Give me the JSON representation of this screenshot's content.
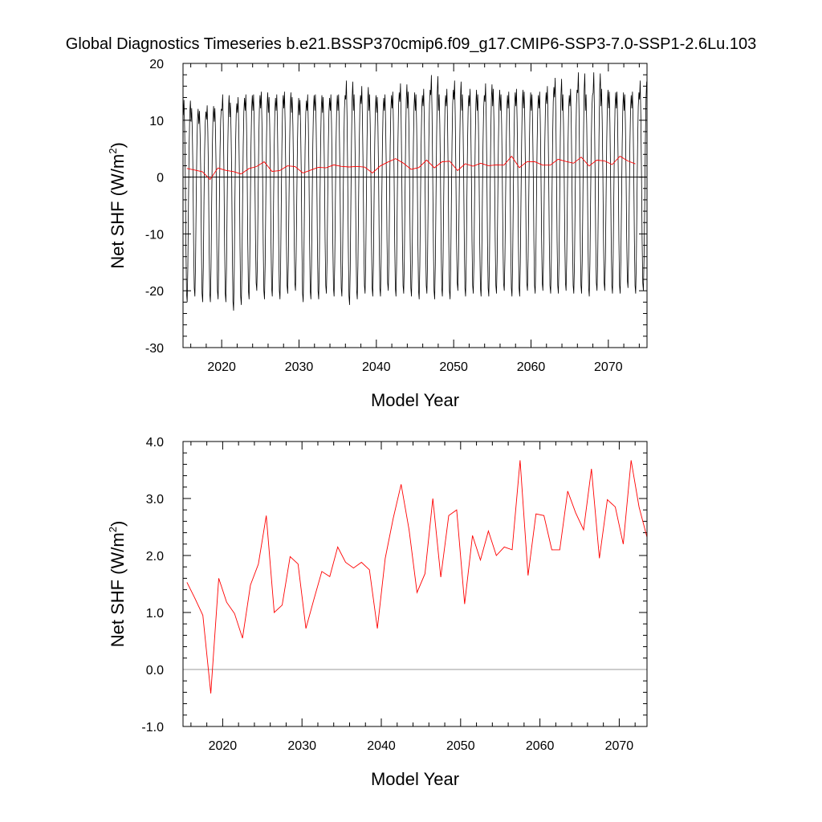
{
  "title": "Global Diagnostics Timeseries b.e21.BSSP370cmip6.f09_g17.CMIP6-SSP3-7.0-SSP1-2.6Lu.103",
  "chart_data": [
    {
      "type": "line",
      "xlabel": "Model Year",
      "ylabel": "Net SHF (W/m",
      "ylabel_sup": "2",
      "ylabel_close": ")",
      "xlim": [
        2015,
        2075
      ],
      "ylim": [
        -30,
        20
      ],
      "xticks": [
        2020,
        2030,
        2040,
        2050,
        2060,
        2070
      ],
      "yticks": [
        -30,
        -20,
        -10,
        0,
        10,
        20
      ],
      "ytick_labels": [
        "-30",
        "-20",
        "-10",
        "0",
        "10",
        "20"
      ],
      "zero_line": true,
      "colors": {
        "monthly": "#000000",
        "annual": "#ff0000"
      },
      "series": [
        {
          "role": "monthly",
          "x_start": 2015.04,
          "x_step": 0.08333,
          "cycle_max": [
            14.0,
            12.5,
            12.0,
            13.0,
            12.5,
            15.0,
            13.5,
            14.5,
            15.0,
            15.0,
            15.5,
            14.5,
            15.0,
            15.5,
            14.5,
            14.0,
            15.0,
            15.0,
            14.5,
            15.0,
            15.0,
            17.5,
            15.0,
            16.5,
            15.0,
            14.5,
            15.0,
            15.5,
            17.0,
            15.5,
            15.0,
            16.0,
            18.5,
            15.0,
            16.0,
            17.5,
            15.0,
            16.0,
            15.0,
            17.0,
            16.0,
            15.0,
            15.5,
            16.0,
            15.5,
            15.0,
            15.5,
            16.5,
            18.0,
            15.0,
            16.0,
            19.0,
            15.0,
            19.0,
            16.0,
            15.5,
            15.5,
            15.0,
            15.5,
            17.5
          ],
          "cycle_min": [
            -22.0,
            -21.0,
            -22.0,
            -22.0,
            -21.5,
            -22.0,
            -23.5,
            -22.5,
            -21.5,
            -20.0,
            -21.5,
            -21.0,
            -21.5,
            -20.5,
            -20.0,
            -22.0,
            -21.5,
            -21.5,
            -20.5,
            -21.0,
            -21.0,
            -22.5,
            -21.5,
            -20.5,
            -21.0,
            -21.0,
            -20.0,
            -21.0,
            -20.5,
            -21.0,
            -21.5,
            -20.5,
            -21.5,
            -21.0,
            -21.5,
            -20.0,
            -21.0,
            -20.5,
            -21.0,
            -21.0,
            -20.5,
            -20.0,
            -21.0,
            -21.0,
            -20.0,
            -20.5,
            -20.0,
            -20.5,
            -20.5,
            -20.0,
            -20.5,
            -20.5,
            -21.0,
            -20.0,
            -20.0,
            -20.5,
            -20.5,
            -19.5,
            -20.5,
            -20.0
          ]
        },
        {
          "role": "annual",
          "name": "",
          "x": [
            2015.5,
            2016.5,
            2017.5,
            2018.5,
            2019.5,
            2020.5,
            2021.5,
            2022.5,
            2023.5,
            2024.5,
            2025.5,
            2026.5,
            2027.5,
            2028.5,
            2029.5,
            2030.5,
            2031.5,
            2032.5,
            2033.5,
            2034.5,
            2035.5,
            2036.5,
            2037.5,
            2038.5,
            2039.5,
            2040.5,
            2041.5,
            2042.5,
            2043.5,
            2044.5,
            2045.5,
            2046.5,
            2047.5,
            2048.5,
            2049.5,
            2050.5,
            2051.5,
            2052.5,
            2053.5,
            2054.5,
            2055.5,
            2056.5,
            2057.5,
            2058.5,
            2059.5,
            2060.5,
            2061.5,
            2062.5,
            2063.5,
            2064.5,
            2065.5,
            2066.5,
            2067.5,
            2068.5,
            2069.5,
            2070.5,
            2071.5,
            2072.5,
            2073.5
          ],
          "values": [
            1.53,
            1.25,
            0.95,
            -0.42,
            1.6,
            1.18,
            0.98,
            0.55,
            1.48,
            1.85,
            2.7,
            1.0,
            1.13,
            1.98,
            1.85,
            0.72,
            1.23,
            1.72,
            1.63,
            2.15,
            1.88,
            1.78,
            1.88,
            1.75,
            0.72,
            1.95,
            2.65,
            3.25,
            2.45,
            1.35,
            1.68,
            3.0,
            1.62,
            2.7,
            2.8,
            1.15,
            2.35,
            1.92,
            2.43,
            2.0,
            2.15,
            2.1,
            3.67,
            1.65,
            2.73,
            2.7,
            2.1,
            2.1,
            3.13,
            2.75,
            2.45,
            3.52,
            1.95,
            2.98,
            2.85,
            2.2,
            3.67,
            2.85,
            2.32
          ]
        }
      ]
    },
    {
      "type": "line",
      "xlabel": "Model Year",
      "ylabel": "Net SHF (W/m",
      "ylabel_sup": "2",
      "ylabel_close": ")",
      "xlim": [
        2015,
        2073.5
      ],
      "ylim": [
        -1.0,
        4.0
      ],
      "xticks": [
        2020,
        2030,
        2040,
        2050,
        2060,
        2070
      ],
      "yticks": [
        -1.0,
        0.0,
        1.0,
        2.0,
        3.0,
        4.0
      ],
      "ytick_labels": [
        "-1.0",
        "0.0",
        "1.0",
        "2.0",
        "3.0",
        "4.0"
      ],
      "zero_line": true,
      "colors": {
        "annual": "#ff0000",
        "zero": "#999999"
      },
      "series": [
        {
          "role": "annual",
          "name": "",
          "x": [
            2015.5,
            2016.5,
            2017.5,
            2018.5,
            2019.5,
            2020.5,
            2021.5,
            2022.5,
            2023.5,
            2024.5,
            2025.5,
            2026.5,
            2027.5,
            2028.5,
            2029.5,
            2030.5,
            2031.5,
            2032.5,
            2033.5,
            2034.5,
            2035.5,
            2036.5,
            2037.5,
            2038.5,
            2039.5,
            2040.5,
            2041.5,
            2042.5,
            2043.5,
            2044.5,
            2045.5,
            2046.5,
            2047.5,
            2048.5,
            2049.5,
            2050.5,
            2051.5,
            2052.5,
            2053.5,
            2054.5,
            2055.5,
            2056.5,
            2057.5,
            2058.5,
            2059.5,
            2060.5,
            2061.5,
            2062.5,
            2063.5,
            2064.5,
            2065.5,
            2066.5,
            2067.5,
            2068.5,
            2069.5,
            2070.5,
            2071.5,
            2072.5,
            2073.5
          ],
          "values": [
            1.53,
            1.25,
            0.95,
            -0.42,
            1.6,
            1.18,
            0.98,
            0.55,
            1.48,
            1.85,
            2.7,
            1.0,
            1.13,
            1.98,
            1.85,
            0.72,
            1.23,
            1.72,
            1.63,
            2.15,
            1.88,
            1.78,
            1.88,
            1.75,
            0.72,
            1.95,
            2.65,
            3.25,
            2.45,
            1.35,
            1.68,
            3.0,
            1.62,
            2.7,
            2.8,
            1.15,
            2.35,
            1.92,
            2.43,
            2.0,
            2.15,
            2.1,
            3.67,
            1.65,
            2.73,
            2.7,
            2.1,
            2.1,
            3.13,
            2.75,
            2.45,
            3.52,
            1.95,
            2.98,
            2.85,
            2.2,
            3.67,
            2.85,
            2.32
          ]
        }
      ]
    }
  ]
}
